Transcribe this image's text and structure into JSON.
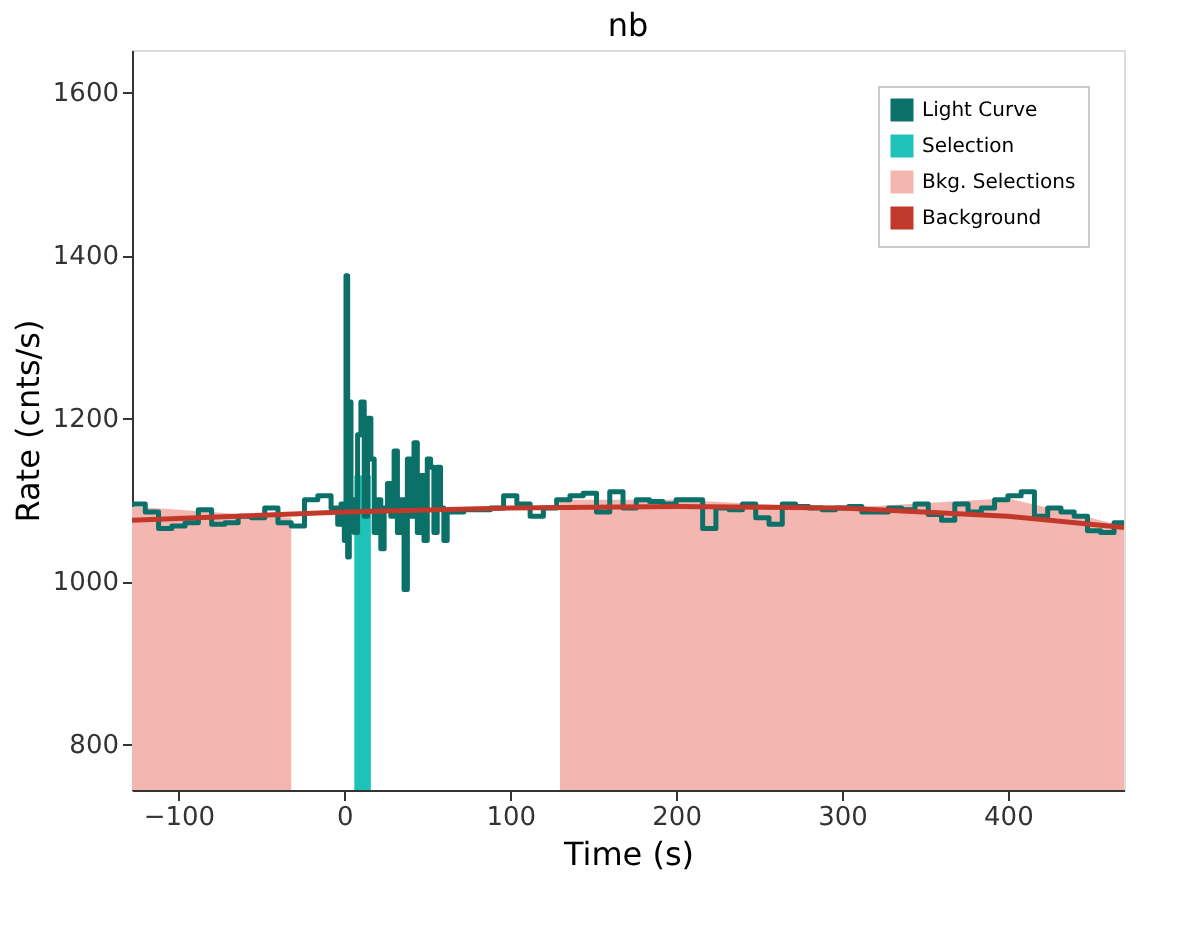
{
  "chart_data": {
    "type": "step",
    "title": "nb",
    "xlabel": "Time (s)",
    "ylabel": "Rate (cnts/s)",
    "xlim": [
      -128,
      470
    ],
    "xticks": [
      -100,
      0,
      100,
      200,
      300,
      400
    ],
    "ylim": [
      744,
      1652
    ],
    "yticks": [
      800,
      1000,
      1200,
      1400,
      1600
    ],
    "grid": false,
    "legend": "top right",
    "line_style": "solid",
    "marker": "none",
    "series": [
      {
        "name": "Light Curve",
        "color": "#0b7068",
        "x": [
          -128,
          -120,
          -112,
          -104,
          -96,
          -88,
          -80,
          -72,
          -64,
          -56,
          -48,
          -40,
          -32,
          -24,
          -16,
          -8,
          -4,
          -2,
          0,
          1,
          2,
          3,
          4,
          6,
          8,
          10,
          12,
          14,
          16,
          18,
          20,
          22,
          24,
          26,
          28,
          30,
          32,
          34,
          36,
          38,
          40,
          42,
          44,
          46,
          48,
          50,
          52,
          54,
          56,
          58,
          60,
          62,
          64,
          72,
          80,
          88,
          96,
          104,
          112,
          120,
          128,
          136,
          144,
          152,
          160,
          168,
          176,
          184,
          192,
          200,
          208,
          216,
          224,
          232,
          240,
          248,
          256,
          264,
          272,
          280,
          288,
          296,
          304,
          312,
          320,
          328,
          336,
          344,
          352,
          360,
          368,
          376,
          384,
          392,
          400,
          408,
          416,
          424,
          432,
          440,
          448,
          456,
          464,
          470
        ],
        "values": [
          1095,
          1085,
          1065,
          1068,
          1072,
          1088,
          1070,
          1072,
          1080,
          1078,
          1090,
          1072,
          1068,
          1100,
          1105,
          1090,
          1070,
          1095,
          1050,
          1375,
          1030,
          1220,
          1100,
          1060,
          1180,
          1220,
          1080,
          1200,
          1150,
          1060,
          1100,
          1040,
          1090,
          1120,
          1080,
          1160,
          1060,
          1100,
          990,
          1150,
          1080,
          1170,
          1060,
          1130,
          1050,
          1150,
          1140,
          1060,
          1140,
          1090,
          1050,
          1085,
          1085,
          1088,
          1088,
          1090,
          1105,
          1095,
          1080,
          1090,
          1100,
          1105,
          1108,
          1085,
          1110,
          1090,
          1100,
          1098,
          1095,
          1100,
          1100,
          1065,
          1090,
          1088,
          1095,
          1078,
          1070,
          1095,
          1092,
          1090,
          1088,
          1090,
          1092,
          1085,
          1085,
          1090,
          1088,
          1095,
          1082,
          1075,
          1095,
          1085,
          1090,
          1100,
          1105,
          1110,
          1080,
          1090,
          1085,
          1080,
          1062,
          1060,
          1072,
          1068
        ]
      },
      {
        "name": "Selection",
        "type": "area",
        "color": "#1fc2b8",
        "x": [
          6,
          16
        ],
        "values": [
          1130,
          1130
        ]
      },
      {
        "name": "Bkg. Selections",
        "type": "area",
        "color": "#f4b6b0",
        "x": [
          -128,
          -32,
          0,
          130,
          200,
          300,
          400,
          470
        ],
        "values": [
          1092,
          1078,
          null,
          1100,
          1100,
          1090,
          1102,
          1068
        ]
      },
      {
        "name": "Background",
        "type": "line",
        "color": "#c0392b",
        "x": [
          -128,
          0,
          100,
          200,
          300,
          400,
          470
        ],
        "values": [
          1075,
          1085,
          1090,
          1092,
          1090,
          1080,
          1066
        ]
      }
    ]
  }
}
